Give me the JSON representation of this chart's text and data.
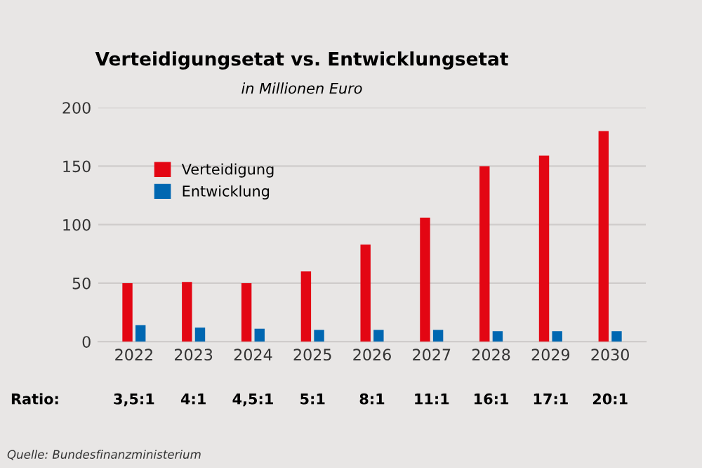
{
  "chart_data": {
    "type": "bar",
    "title": "Verteidigungsetat vs. Entwicklungsetat",
    "subtitle": "in Millionen Euro",
    "categories": [
      "2022",
      "2023",
      "2024",
      "2025",
      "2026",
      "2027",
      "2028",
      "2029",
      "2030"
    ],
    "series": [
      {
        "name": "Verteidigung",
        "color": "#e30613",
        "values": [
          50,
          51,
          50,
          60,
          83,
          106,
          150,
          159,
          180
        ]
      },
      {
        "name": "Entwicklung",
        "color": "#0067b1",
        "values": [
          14,
          12,
          11,
          10,
          10,
          10,
          9,
          9,
          9
        ]
      }
    ],
    "ylim": [
      0,
      200
    ],
    "yticks": [
      0,
      50,
      100,
      150,
      200
    ],
    "grid": "y",
    "legend": "top left",
    "annotations": [
      "Ratio:",
      "3,5:1",
      "4:1",
      "4,5:1",
      "5:1",
      "8:1",
      "11:1",
      "16:1",
      "17:1",
      "20:1",
      "Quelle: Bundesfinanzministerium"
    ]
  }
}
